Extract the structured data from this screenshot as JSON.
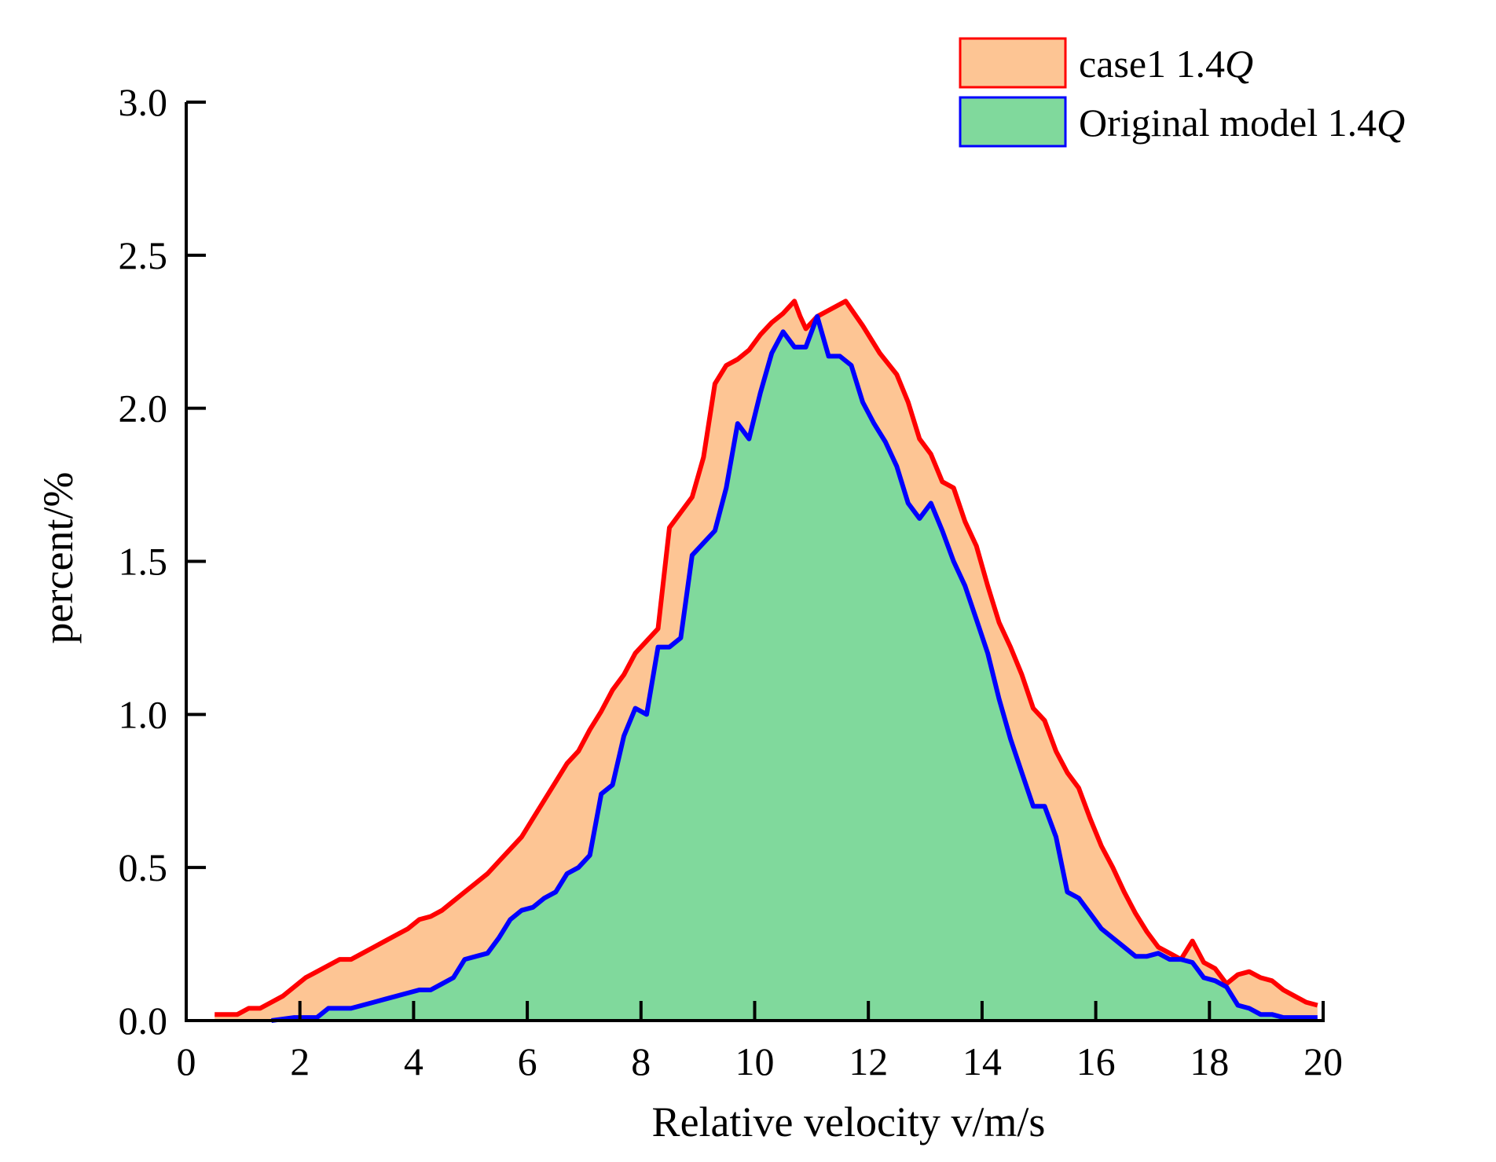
{
  "chart_data": {
    "type": "area",
    "title": "",
    "xlabel": "Relative velocity v/m/s",
    "ylabel": "percent/%",
    "xlim": [
      0,
      20
    ],
    "ylim": [
      0,
      3.0
    ],
    "xticks": [
      0,
      2,
      4,
      6,
      8,
      10,
      12,
      14,
      16,
      18,
      20
    ],
    "yticks": [
      0.0,
      0.5,
      1.0,
      1.5,
      2.0,
      2.5,
      3.0
    ],
    "ytick_labels": [
      "0.0",
      "0.5",
      "1.0",
      "1.5",
      "2.0",
      "2.5",
      "3.0"
    ],
    "legend_position": "top-right",
    "series": [
      {
        "name": "case1 1.4Q",
        "legend_prefix": "case1 1.4",
        "legend_italic": "Q",
        "line_color": "#ff0000",
        "fill_color": "#fdc594",
        "x": [
          0.5,
          0.7,
          0.9,
          1.1,
          1.3,
          1.5,
          1.7,
          1.9,
          2.1,
          2.3,
          2.5,
          2.7,
          2.9,
          3.1,
          3.3,
          3.5,
          3.7,
          3.9,
          4.1,
          4.3,
          4.5,
          4.7,
          4.9,
          5.1,
          5.3,
          5.5,
          5.7,
          5.9,
          6.1,
          6.3,
          6.5,
          6.7,
          6.9,
          7.1,
          7.3,
          7.5,
          7.7,
          7.9,
          8.1,
          8.3,
          8.5,
          8.7,
          8.9,
          9.1,
          9.3,
          9.5,
          9.7,
          9.9,
          10.1,
          10.3,
          10.5,
          10.7,
          10.8,
          10.9,
          11.1,
          11.3,
          11.6,
          11.9,
          12.2,
          12.5,
          12.7,
          12.9,
          13.1,
          13.3,
          13.5,
          13.7,
          13.9,
          14.1,
          14.3,
          14.5,
          14.7,
          14.9,
          15.1,
          15.3,
          15.5,
          15.7,
          15.9,
          16.1,
          16.3,
          16.5,
          16.7,
          16.9,
          17.1,
          17.3,
          17.5,
          17.7,
          17.9,
          18.1,
          18.3,
          18.5,
          18.7,
          18.9,
          19.1,
          19.3,
          19.5,
          19.7,
          19.9
        ],
        "values": [
          0.02,
          0.02,
          0.02,
          0.04,
          0.04,
          0.06,
          0.08,
          0.11,
          0.14,
          0.16,
          0.18,
          0.2,
          0.2,
          0.22,
          0.24,
          0.26,
          0.28,
          0.3,
          0.33,
          0.34,
          0.36,
          0.39,
          0.42,
          0.45,
          0.48,
          0.52,
          0.56,
          0.6,
          0.66,
          0.72,
          0.78,
          0.84,
          0.88,
          0.95,
          1.01,
          1.08,
          1.13,
          1.2,
          1.24,
          1.28,
          1.61,
          1.66,
          1.71,
          1.84,
          2.08,
          2.14,
          2.16,
          2.19,
          2.24,
          2.28,
          2.31,
          2.35,
          2.3,
          2.26,
          2.3,
          2.32,
          2.35,
          2.27,
          2.18,
          2.11,
          2.02,
          1.9,
          1.85,
          1.76,
          1.74,
          1.63,
          1.55,
          1.42,
          1.3,
          1.22,
          1.13,
          1.02,
          0.98,
          0.88,
          0.81,
          0.76,
          0.66,
          0.57,
          0.5,
          0.42,
          0.35,
          0.29,
          0.24,
          0.22,
          0.2,
          0.26,
          0.19,
          0.17,
          0.12,
          0.15,
          0.16,
          0.14,
          0.13,
          0.1,
          0.08,
          0.06,
          0.05
        ]
      },
      {
        "name": "Original model 1.4Q",
        "legend_prefix": "Original model 1.4",
        "legend_italic": "Q",
        "line_color": "#0000ff",
        "fill_color": "#80d99c",
        "x": [
          1.5,
          1.9,
          2.3,
          2.5,
          2.7,
          2.9,
          3.1,
          3.3,
          3.5,
          3.7,
          3.9,
          4.1,
          4.3,
          4.5,
          4.7,
          4.9,
          5.1,
          5.3,
          5.5,
          5.7,
          5.9,
          6.1,
          6.3,
          6.5,
          6.7,
          6.9,
          7.1,
          7.3,
          7.5,
          7.7,
          7.9,
          8.1,
          8.3,
          8.5,
          8.7,
          8.9,
          9.1,
          9.3,
          9.5,
          9.7,
          9.9,
          10.1,
          10.3,
          10.5,
          10.7,
          10.9,
          11.1,
          11.3,
          11.5,
          11.7,
          11.9,
          12.1,
          12.3,
          12.5,
          12.7,
          12.9,
          13.1,
          13.3,
          13.5,
          13.7,
          13.9,
          14.1,
          14.3,
          14.5,
          14.7,
          14.9,
          15.1,
          15.3,
          15.5,
          15.7,
          15.9,
          16.1,
          16.3,
          16.5,
          16.7,
          16.9,
          17.1,
          17.3,
          17.5,
          17.7,
          17.9,
          18.1,
          18.3,
          18.5,
          18.7,
          18.9,
          19.1,
          19.3,
          19.5,
          19.7,
          19.9
        ],
        "values": [
          0.0,
          0.01,
          0.01,
          0.04,
          0.04,
          0.04,
          0.05,
          0.06,
          0.07,
          0.08,
          0.09,
          0.1,
          0.1,
          0.12,
          0.14,
          0.2,
          0.21,
          0.22,
          0.27,
          0.33,
          0.36,
          0.37,
          0.4,
          0.42,
          0.48,
          0.5,
          0.54,
          0.74,
          0.77,
          0.93,
          1.02,
          1.0,
          1.22,
          1.22,
          1.25,
          1.52,
          1.56,
          1.6,
          1.74,
          1.95,
          1.9,
          2.05,
          2.18,
          2.25,
          2.2,
          2.2,
          2.3,
          2.17,
          2.17,
          2.14,
          2.02,
          1.95,
          1.89,
          1.81,
          1.69,
          1.64,
          1.69,
          1.6,
          1.5,
          1.42,
          1.31,
          1.2,
          1.05,
          0.92,
          0.81,
          0.7,
          0.7,
          0.6,
          0.42,
          0.4,
          0.35,
          0.3,
          0.27,
          0.24,
          0.21,
          0.21,
          0.22,
          0.2,
          0.2,
          0.19,
          0.14,
          0.13,
          0.11,
          0.05,
          0.04,
          0.02,
          0.02,
          0.01,
          0.01,
          0.01,
          0.01
        ]
      }
    ]
  }
}
